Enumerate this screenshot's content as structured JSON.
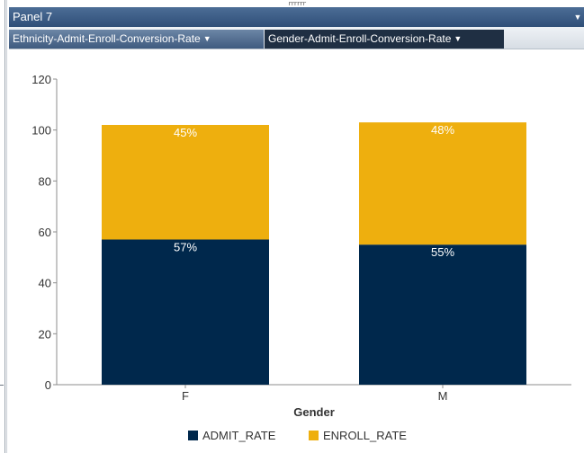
{
  "panel": {
    "title": "Panel 7",
    "menu_glyph": "▼"
  },
  "tabs": [
    {
      "label": "Ethnicity-Admit-Enroll-Conversion-Rate",
      "active": false
    },
    {
      "label": "Gender-Admit-Enroll-Conversion-Rate",
      "active": true
    }
  ],
  "tab_caret": "▼",
  "top_marker": "rrrrrr",
  "chart_data": {
    "type": "bar",
    "stacked": true,
    "categories": [
      "F",
      "M"
    ],
    "series": [
      {
        "name": "ADMIT_RATE",
        "values": [
          57,
          55
        ],
        "labels": [
          "57%",
          "55%"
        ],
        "color": "#00284c"
      },
      {
        "name": "ENROLL_RATE",
        "values": [
          45,
          48
        ],
        "labels": [
          "45%",
          "48%"
        ],
        "color": "#eeaf0e"
      }
    ],
    "xlabel": "Gender",
    "ylabel": "",
    "ylim": [
      0,
      120
    ],
    "yticks": [
      "0",
      "20",
      "40",
      "60",
      "80",
      "100",
      "120"
    ],
    "legend_position": "bottom",
    "grid": false
  }
}
